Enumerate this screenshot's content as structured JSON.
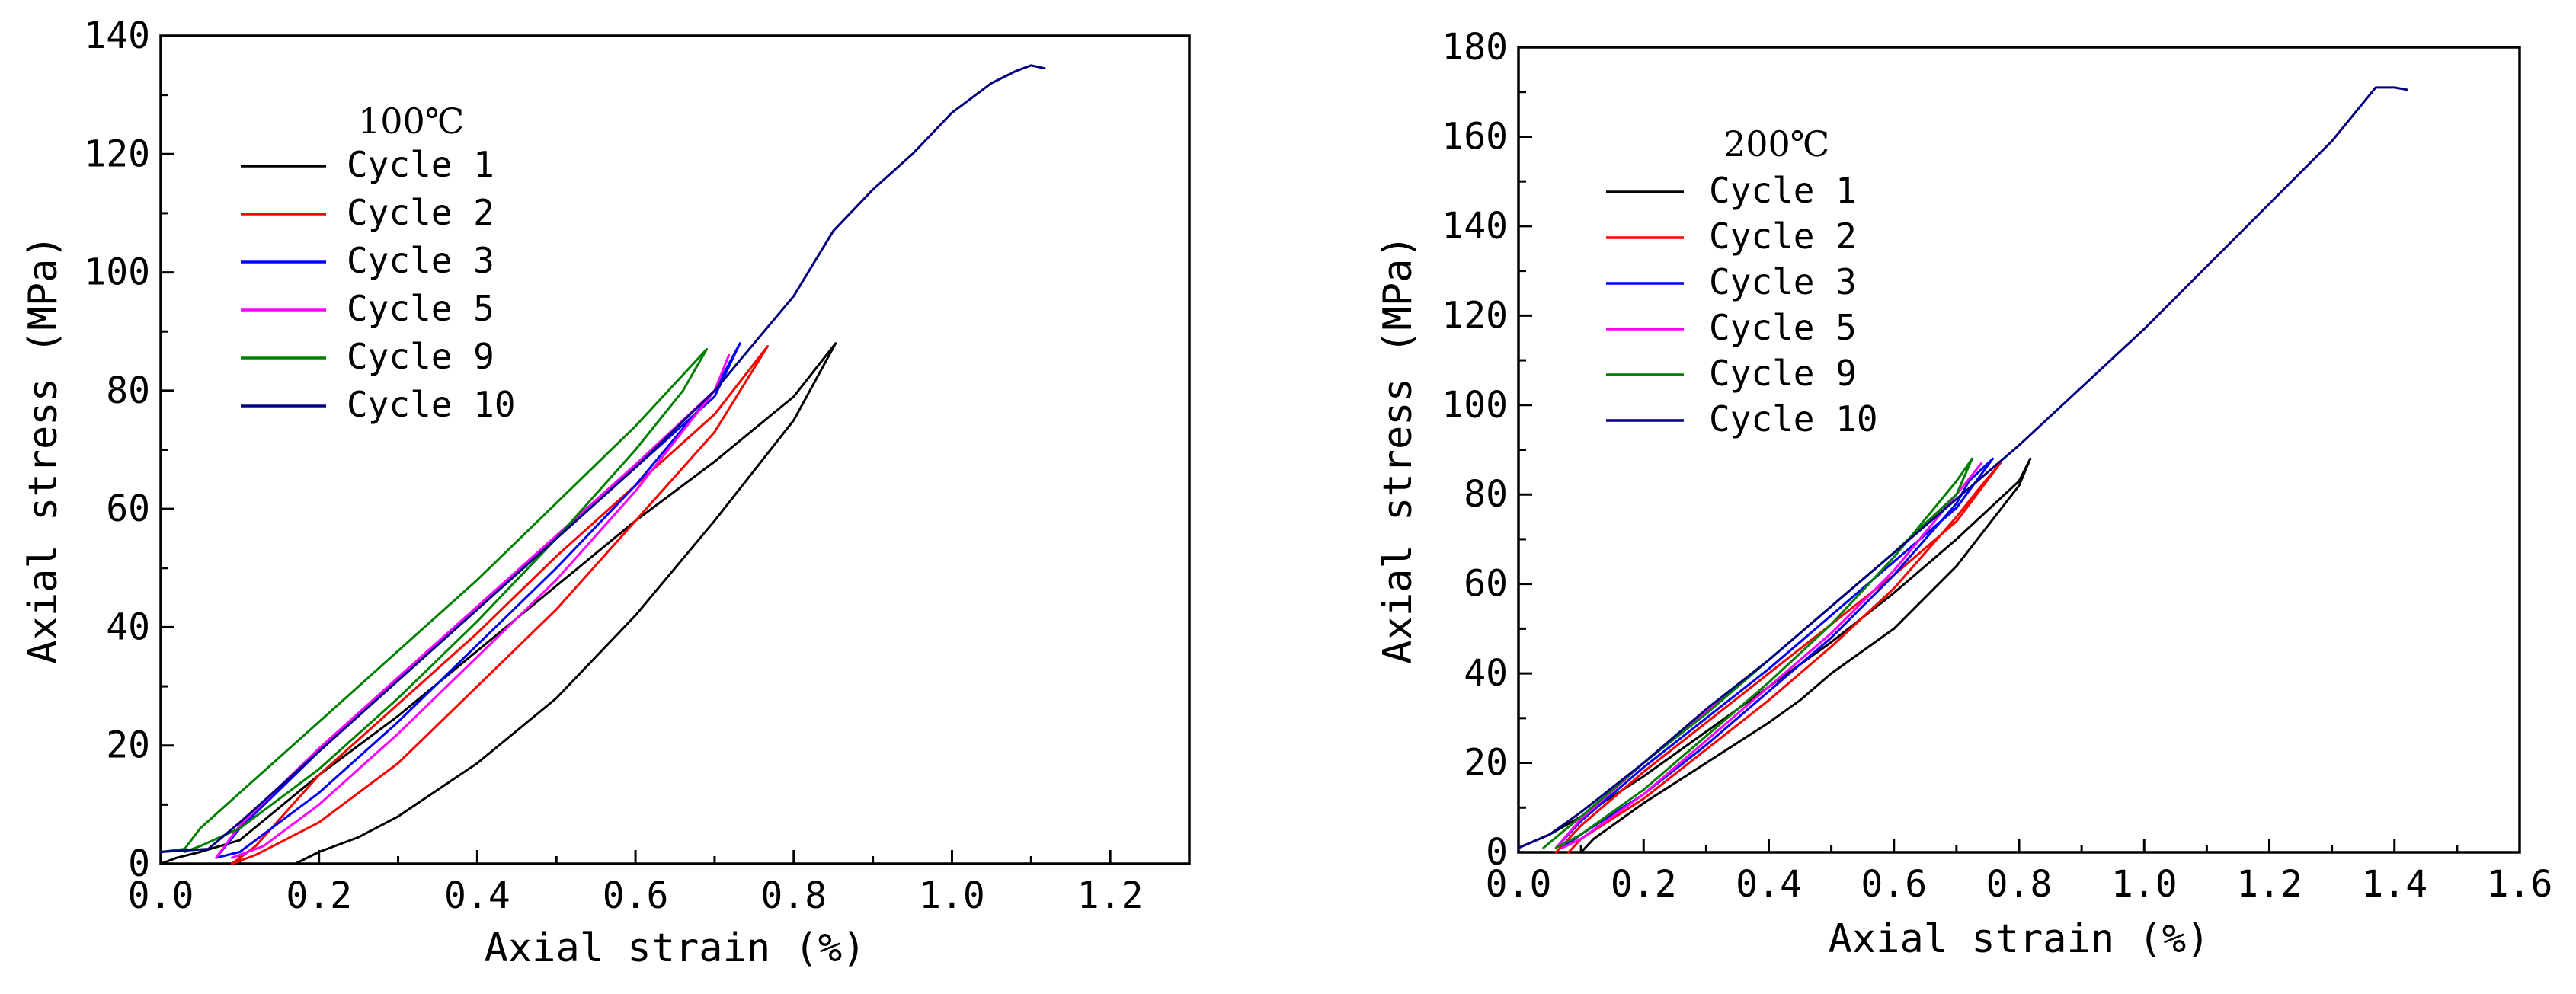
{
  "chart_data": [
    {
      "type": "line",
      "legend_title": "100℃",
      "xlabel": "Axial strain (%)",
      "ylabel": "Axial stress (MPa)",
      "xlim": [
        0,
        1.3
      ],
      "ylim": [
        0,
        140
      ],
      "xticks": [
        0.0,
        0.2,
        0.4,
        0.6,
        0.8,
        1.0,
        1.2
      ],
      "xtick_labels": [
        "0.0",
        "0.2",
        "0.4",
        "0.6",
        "0.8",
        "1.0",
        "1.2"
      ],
      "yticks": [
        0,
        20,
        40,
        60,
        80,
        100,
        120,
        140
      ],
      "ytick_labels": [
        "0",
        "20",
        "40",
        "60",
        "80",
        "100",
        "120",
        "140"
      ],
      "legend_position": "upper-left",
      "series": [
        {
          "name": "Cycle 1",
          "color": "#000000",
          "x": [
            0.0,
            0.02,
            0.05,
            0.1,
            0.2,
            0.3,
            0.4,
            0.5,
            0.6,
            0.7,
            0.8,
            0.853,
            0.8,
            0.7,
            0.6,
            0.5,
            0.4,
            0.3,
            0.25,
            0.2,
            0.17
          ],
          "y": [
            0.0,
            1.0,
            2.0,
            4.0,
            15.0,
            25.0,
            36.0,
            47.0,
            58.0,
            68.0,
            79.0,
            88.0,
            75.0,
            58.0,
            42.0,
            28.0,
            17.0,
            8.0,
            4.5,
            2.0,
            0.0
          ]
        },
        {
          "name": "Cycle 2",
          "color": "#ff0000",
          "x": [
            0.09,
            0.12,
            0.2,
            0.3,
            0.4,
            0.5,
            0.6,
            0.7,
            0.767,
            0.7,
            0.6,
            0.5,
            0.4,
            0.3,
            0.2,
            0.12,
            0.09
          ],
          "y": [
            0.0,
            3.0,
            15.0,
            27.0,
            39.0,
            52.0,
            64.0,
            76.0,
            87.5,
            73.0,
            58.0,
            43.0,
            30.0,
            17.0,
            7.0,
            1.5,
            0.0
          ]
        },
        {
          "name": "Cycle 3",
          "color": "#0000ff",
          "x": [
            0.07,
            0.1,
            0.2,
            0.3,
            0.4,
            0.5,
            0.6,
            0.7,
            0.732,
            0.7,
            0.6,
            0.5,
            0.4,
            0.3,
            0.2,
            0.1,
            0.07
          ],
          "y": [
            1.0,
            6.0,
            19.0,
            31.0,
            43.0,
            55.0,
            67.0,
            79.0,
            88.0,
            80.0,
            64.0,
            50.0,
            37.0,
            24.0,
            12.0,
            2.0,
            1.0
          ]
        },
        {
          "name": "Cycle 5",
          "color": "#ff00ff",
          "x": [
            0.07,
            0.1,
            0.2,
            0.3,
            0.4,
            0.5,
            0.6,
            0.7,
            0.718,
            0.7,
            0.6,
            0.5,
            0.4,
            0.3,
            0.2,
            0.13,
            0.09
          ],
          "y": [
            1.0,
            6.5,
            19.5,
            31.5,
            43.5,
            55.5,
            67.5,
            80.0,
            86.0,
            80.0,
            63.0,
            48.0,
            35.0,
            22.0,
            10.0,
            3.0,
            1.0
          ]
        },
        {
          "name": "Cycle 9",
          "color": "#008000",
          "x": [
            0.0,
            0.03,
            0.05,
            0.1,
            0.2,
            0.3,
            0.4,
            0.5,
            0.6,
            0.69,
            0.66,
            0.6,
            0.5,
            0.4,
            0.3,
            0.2,
            0.1,
            0.05,
            0.03
          ],
          "y": [
            2.0,
            2.5,
            6.0,
            12.0,
            24.0,
            36.0,
            48.0,
            61.0,
            74.0,
            87.0,
            80.0,
            70.0,
            55.0,
            41.0,
            28.0,
            16.0,
            6.0,
            3.0,
            2.0
          ]
        },
        {
          "name": "Cycle 10",
          "color": "#000080",
          "x": [
            0.0,
            0.06,
            0.1,
            0.2,
            0.3,
            0.4,
            0.5,
            0.6,
            0.7,
            0.75,
            0.8,
            0.85,
            0.9,
            0.95,
            1.0,
            1.05,
            1.08,
            1.1,
            1.117
          ],
          "y": [
            2.0,
            2.5,
            7.0,
            19.0,
            31.0,
            43.0,
            55.0,
            67.0,
            80.0,
            88.0,
            96.0,
            107.0,
            114.0,
            120.0,
            127.0,
            132.0,
            134.0,
            135.0,
            134.5
          ]
        }
      ]
    },
    {
      "type": "line",
      "legend_title": "200℃",
      "xlabel": "Axial strain (%)",
      "ylabel": "Axial stress (MPa)",
      "xlim": [
        0,
        1.6
      ],
      "ylim": [
        0,
        180
      ],
      "xticks": [
        0.0,
        0.2,
        0.4,
        0.6,
        0.8,
        1.0,
        1.2,
        1.4,
        1.6
      ],
      "xtick_labels": [
        "0.0",
        "0.2",
        "0.4",
        "0.6",
        "0.8",
        "1.0",
        "1.2",
        "1.4",
        "1.6"
      ],
      "yticks": [
        0,
        20,
        40,
        60,
        80,
        100,
        120,
        140,
        160,
        180
      ],
      "ytick_labels": [
        "0",
        "20",
        "40",
        "60",
        "80",
        "100",
        "120",
        "140",
        "160",
        "180"
      ],
      "legend_position": "upper-left",
      "series": [
        {
          "name": "Cycle 1",
          "color": "#000000",
          "x": [
            0.0,
            0.05,
            0.1,
            0.2,
            0.3,
            0.4,
            0.5,
            0.6,
            0.7,
            0.8,
            0.818,
            0.8,
            0.7,
            0.6,
            0.5,
            0.45,
            0.4,
            0.3,
            0.2,
            0.12,
            0.1
          ],
          "y": [
            1.0,
            4.0,
            8.0,
            17.0,
            27.0,
            37.0,
            47.0,
            58.0,
            70.0,
            83.0,
            88.0,
            82.0,
            64.0,
            50.0,
            40.0,
            34.0,
            29.0,
            20.0,
            11.0,
            3.0,
            0.0
          ]
        },
        {
          "name": "Cycle 2",
          "color": "#ff0000",
          "x": [
            0.06,
            0.1,
            0.2,
            0.3,
            0.4,
            0.5,
            0.6,
            0.7,
            0.77,
            0.74,
            0.7,
            0.6,
            0.5,
            0.4,
            0.3,
            0.2,
            0.1,
            0.08
          ],
          "y": [
            0.0,
            6.0,
            18.0,
            29.0,
            40.0,
            51.0,
            62.0,
            74.0,
            87.0,
            82.0,
            75.0,
            59.0,
            46.0,
            34.0,
            23.0,
            12.0,
            3.0,
            0.0
          ]
        },
        {
          "name": "Cycle 3",
          "color": "#0000ff",
          "x": [
            0.06,
            0.1,
            0.2,
            0.3,
            0.4,
            0.5,
            0.6,
            0.7,
            0.758,
            0.72,
            0.7,
            0.6,
            0.5,
            0.4,
            0.3,
            0.2,
            0.1,
            0.07
          ],
          "y": [
            1.0,
            7.0,
            19.0,
            30.0,
            41.0,
            53.0,
            65.0,
            77.0,
            88.0,
            83.0,
            78.0,
            62.0,
            48.0,
            36.0,
            24.0,
            13.0,
            4.0,
            1.0
          ]
        },
        {
          "name": "Cycle 5",
          "color": "#ff00ff",
          "x": [
            0.06,
            0.1,
            0.2,
            0.3,
            0.4,
            0.5,
            0.6,
            0.7,
            0.74,
            0.7,
            0.6,
            0.5,
            0.4,
            0.3,
            0.2,
            0.1,
            0.07
          ],
          "y": [
            1.0,
            7.5,
            20.0,
            31.5,
            43.0,
            55.0,
            67.0,
            80.0,
            87.0,
            80.0,
            63.0,
            49.0,
            37.0,
            25.0,
            13.0,
            3.0,
            1.0
          ]
        },
        {
          "name": "Cycle 9",
          "color": "#008000",
          "x": [
            0.04,
            0.1,
            0.2,
            0.3,
            0.4,
            0.5,
            0.6,
            0.7,
            0.725,
            0.7,
            0.6,
            0.5,
            0.4,
            0.3,
            0.2,
            0.1,
            0.06
          ],
          "y": [
            1.0,
            8.0,
            20.0,
            31.0,
            43.0,
            55.0,
            67.0,
            80.0,
            88.0,
            83.0,
            66.0,
            51.0,
            38.0,
            26.0,
            14.0,
            4.0,
            1.0
          ]
        },
        {
          "name": "Cycle 10",
          "color": "#000080",
          "x": [
            0.0,
            0.05,
            0.1,
            0.2,
            0.3,
            0.4,
            0.5,
            0.6,
            0.7,
            0.8,
            0.9,
            1.0,
            1.1,
            1.2,
            1.3,
            1.37,
            1.4,
            1.42
          ],
          "y": [
            1.0,
            4.0,
            9.0,
            20.0,
            32.0,
            43.0,
            55.0,
            67.0,
            79.0,
            91.0,
            104.0,
            117.0,
            131.0,
            145.0,
            159.0,
            171.0,
            171.0,
            170.5
          ]
        }
      ]
    }
  ]
}
